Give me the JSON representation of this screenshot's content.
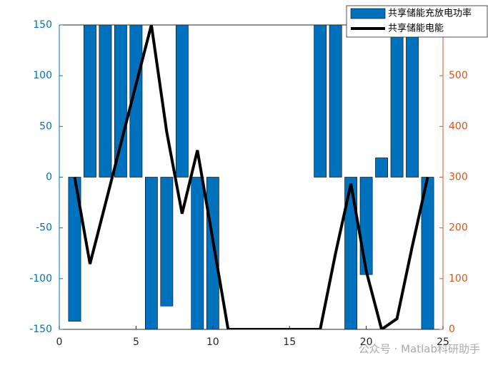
{
  "chart_data": {
    "type": "bar",
    "x": [
      1,
      2,
      3,
      4,
      5,
      6,
      7,
      8,
      9,
      10,
      11,
      12,
      13,
      14,
      15,
      16,
      17,
      18,
      19,
      20,
      21,
      22,
      23,
      24
    ],
    "series": [
      {
        "name": "共享储能充放电功率",
        "color": "#0072BD",
        "type": "bar",
        "values": [
          -142,
          150,
          150,
          150,
          150,
          -150,
          -127,
          150,
          -150,
          -150,
          0,
          0,
          0,
          0,
          0,
          0,
          150,
          150,
          -150,
          -96,
          19,
          150,
          150,
          -150
        ]
      },
      {
        "name": "共享储能电能",
        "color": "#000000",
        "type": "line",
        "axis": "y2",
        "values": [
          300,
          129,
          247,
          365,
          483,
          600,
          389,
          228,
          353,
          177,
          0,
          0,
          0,
          0,
          0,
          0,
          0,
          150,
          287,
          115,
          0,
          21,
          164,
          300
        ]
      }
    ],
    "xlim": [
      0,
      25
    ],
    "xticks": [
      0,
      5,
      10,
      15,
      20,
      25
    ],
    "ylim": [
      -150,
      150
    ],
    "yticks": [
      -150,
      -100,
      -50,
      0,
      50,
      100,
      150
    ],
    "ycolor": "#0072BD",
    "y2lim": [
      0,
      600
    ],
    "y2ticks": [
      0,
      100,
      200,
      300,
      400,
      500
    ],
    "y2color": "#D95319",
    "legend": "upper right",
    "watermark": "公众号 · Matlab科研助手"
  }
}
